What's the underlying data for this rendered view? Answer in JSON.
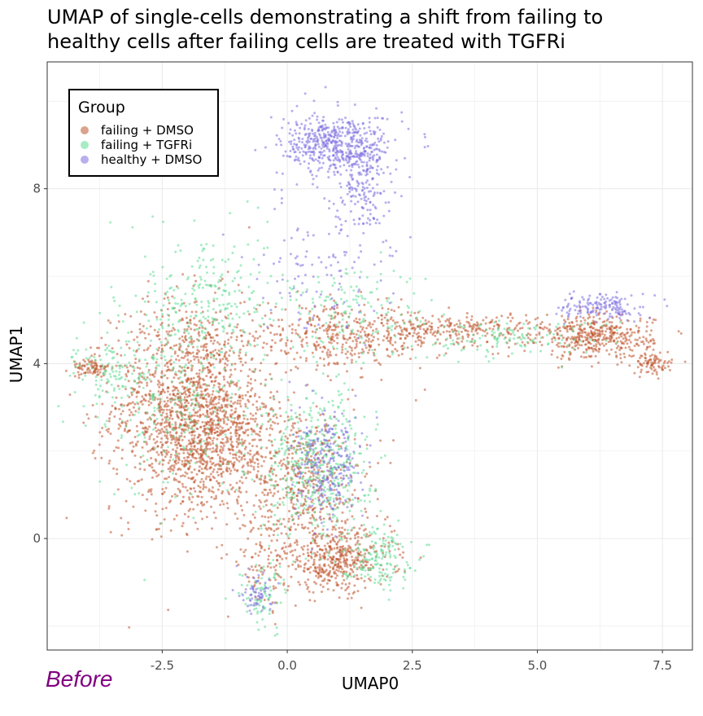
{
  "chart_data": {
    "type": "scatter",
    "title_lines": [
      "UMAP of single-cells demonstrating a shift from failing to",
      "healthy cells after failing cells are treated with TGFRi"
    ],
    "xlabel": "UMAP0",
    "ylabel": "UMAP1",
    "xlim": [
      -4.8,
      8.1
    ],
    "ylim": [
      -2.55,
      10.9
    ],
    "xticks": [
      -2.5,
      0.0,
      2.5,
      5.0,
      7.5
    ],
    "xtick_labels": [
      "-2.5",
      "0.0",
      "2.5",
      "5.0",
      "7.5"
    ],
    "yticks": [
      0,
      4,
      8
    ],
    "ytick_labels": [
      "0",
      "4",
      "8"
    ],
    "grid": true,
    "legend": {
      "title": "Group",
      "placement": "top-left",
      "entries": [
        "failing + DMSO",
        "failing + TGFRi",
        "healthy + DMSO"
      ]
    },
    "series": [
      {
        "name": "failing + DMSO",
        "color": "#c0562e",
        "clusters": [
          {
            "cx": -2.0,
            "cy": 3.0,
            "sx": 0.75,
            "sy": 1.2,
            "weight": 0.34
          },
          {
            "cx": -1.3,
            "cy": 2.2,
            "sx": 0.6,
            "sy": 0.8,
            "weight": 0.12
          },
          {
            "cx": 0.4,
            "cy": 1.2,
            "sx": 0.6,
            "sy": 0.9,
            "weight": 0.12
          },
          {
            "cx": 1.0,
            "cy": -0.5,
            "sx": 0.55,
            "sy": 0.35,
            "weight": 0.1
          },
          {
            "cx": 1.1,
            "cy": 4.6,
            "sx": 1.0,
            "sy": 0.35,
            "weight": 0.1
          },
          {
            "cx": 3.5,
            "cy": 4.8,
            "sx": 0.9,
            "sy": 0.18,
            "weight": 0.06
          },
          {
            "cx": 6.2,
            "cy": 4.6,
            "sx": 0.55,
            "sy": 0.25,
            "weight": 0.1
          },
          {
            "cx": 7.3,
            "cy": 4.0,
            "sx": 0.2,
            "sy": 0.12,
            "weight": 0.02
          },
          {
            "cx": -3.9,
            "cy": 3.9,
            "sx": 0.2,
            "sy": 0.1,
            "weight": 0.02
          },
          {
            "cx": -0.4,
            "cy": -0.6,
            "sx": 0.3,
            "sy": 0.6,
            "weight": 0.02
          }
        ],
        "n_points": 4200
      },
      {
        "name": "failing + TGFRi",
        "color": "#5fdc94",
        "clusters": [
          {
            "cx": 0.6,
            "cy": 1.7,
            "sx": 0.55,
            "sy": 0.8,
            "weight": 0.3
          },
          {
            "cx": -1.6,
            "cy": 5.5,
            "sx": 0.6,
            "sy": 0.8,
            "weight": 0.14
          },
          {
            "cx": -2.3,
            "cy": 3.3,
            "sx": 0.8,
            "sy": 1.2,
            "weight": 0.18
          },
          {
            "cx": 1.8,
            "cy": -0.4,
            "sx": 0.35,
            "sy": 0.35,
            "weight": 0.1
          },
          {
            "cx": 1.2,
            "cy": 5.2,
            "sx": 0.9,
            "sy": 0.6,
            "weight": 0.1
          },
          {
            "cx": 4.5,
            "cy": 4.6,
            "sx": 1.0,
            "sy": 0.2,
            "weight": 0.08
          },
          {
            "cx": -0.5,
            "cy": -1.3,
            "sx": 0.25,
            "sy": 0.4,
            "weight": 0.05
          },
          {
            "cx": -3.5,
            "cy": 3.8,
            "sx": 0.4,
            "sy": 0.3,
            "weight": 0.05
          }
        ],
        "n_points": 1600
      },
      {
        "name": "healthy + DMSO",
        "color": "#7b6ee0",
        "clusters": [
          {
            "cx": 1.0,
            "cy": 9.0,
            "sx": 0.55,
            "sy": 0.35,
            "weight": 0.42
          },
          {
            "cx": 1.5,
            "cy": 8.0,
            "sx": 0.25,
            "sy": 0.5,
            "weight": 0.12
          },
          {
            "cx": 0.8,
            "cy": 1.6,
            "sx": 0.35,
            "sy": 0.6,
            "weight": 0.2
          },
          {
            "cx": 6.3,
            "cy": 5.3,
            "sx": 0.4,
            "sy": 0.15,
            "weight": 0.12
          },
          {
            "cx": -0.6,
            "cy": -1.2,
            "sx": 0.15,
            "sy": 0.3,
            "weight": 0.05
          },
          {
            "cx": 0.7,
            "cy": 6.2,
            "sx": 0.7,
            "sy": 0.8,
            "weight": 0.09
          }
        ],
        "n_points": 1300
      }
    ]
  },
  "caption": "Before"
}
